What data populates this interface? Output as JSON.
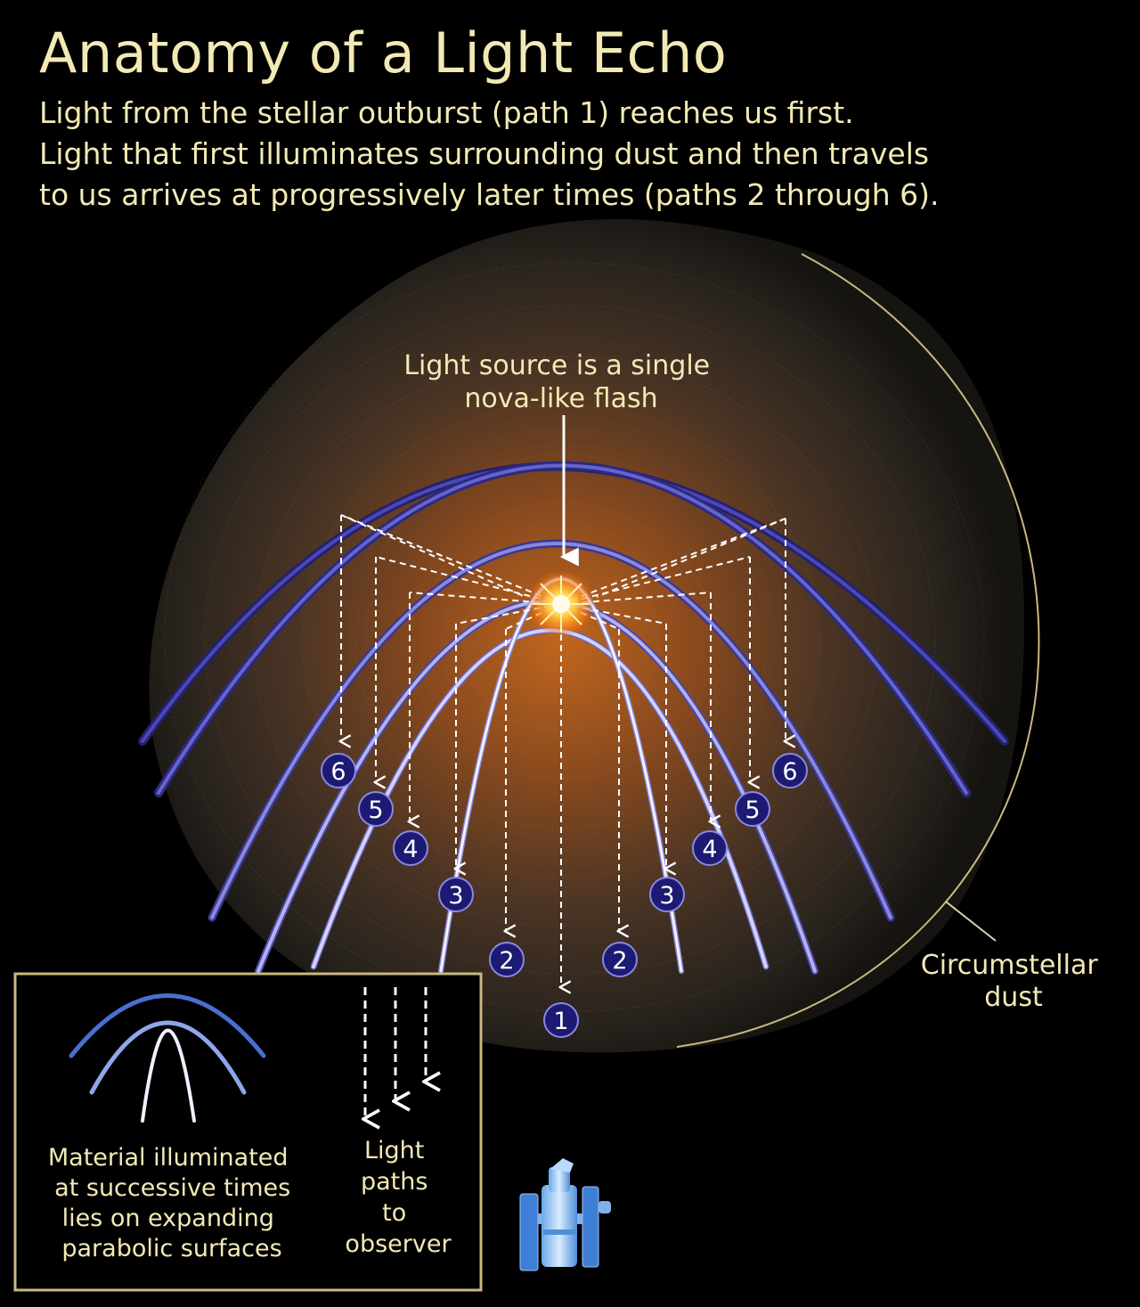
{
  "title": "Anatomy of a Light Echo",
  "subtitle_lines": [
    "Light from the stellar outburst (path 1) reaches us first.",
    "Light that first illuminates surrounding dust and then travels",
    "to us arrives at progressively later times (paths 2 through 6)."
  ],
  "source_label": [
    "Light source is a single",
    "nova-like flash"
  ],
  "dust_label": [
    "Circumstellar",
    "dust"
  ],
  "path_numbers": [
    "1",
    "2",
    "3",
    "4",
    "5",
    "6"
  ],
  "legend": {
    "material_label": [
      "Material illuminated",
      "at successive times",
      "lies on expanding",
      "parabolic surfaces"
    ],
    "paths_label": [
      "Light",
      "paths",
      "to",
      "observer"
    ]
  },
  "icons": [
    "nova-flash-icon",
    "telescope-icon"
  ],
  "colors": {
    "text": "#f3e9b4",
    "parabola_outer": "#4b48b8",
    "parabola_inner": "#e8e6ff",
    "marker_fill": "#1c1a72",
    "dust_core": "#b55d1c",
    "legend_border": "#c9b880"
  }
}
